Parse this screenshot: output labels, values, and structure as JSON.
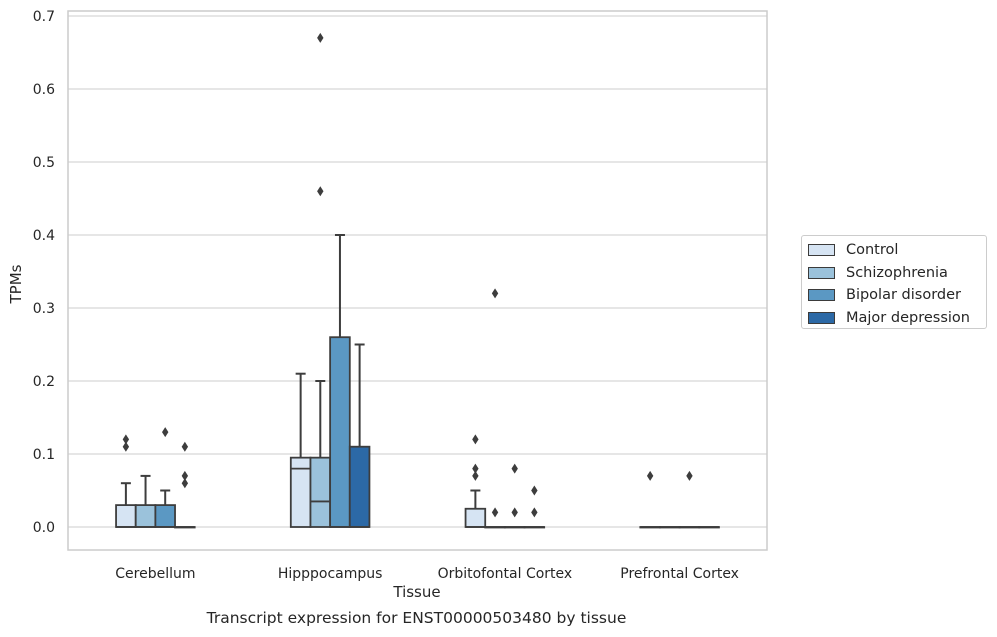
{
  "chart_data": {
    "type": "box",
    "caption": "Transcript expression for ENST00000503480 by tissue",
    "xlabel": "Tissue",
    "ylabel": "TPMs",
    "ylim": [
      -0.032,
      0.705
    ],
    "yticks": [
      "0.0",
      "0.1",
      "0.2",
      "0.3",
      "0.4",
      "0.5",
      "0.6",
      "0.7"
    ],
    "ytick_values": [
      0,
      0.1,
      0.2,
      0.3,
      0.4,
      0.5,
      0.6,
      0.7
    ],
    "categories": [
      "Cerebellum",
      "Hipppocampus",
      "Orbitofontal Cortex",
      "Prefrontal Cortex"
    ],
    "grid": true,
    "legend_position": "right",
    "series": [
      {
        "name": "Control",
        "color": "#d6e4f3",
        "boxes": [
          {
            "q1": 0,
            "median": 0,
            "q3": 0.03,
            "whislo": 0,
            "whishi": 0.06,
            "fliers": [
              0.11,
              0.12
            ]
          },
          {
            "q1": 0,
            "median": 0.08,
            "q3": 0.095,
            "whislo": 0,
            "whishi": 0.21,
            "fliers": []
          },
          {
            "q1": 0,
            "median": 0,
            "q3": 0.025,
            "whislo": 0,
            "whishi": 0.05,
            "fliers": [
              0.07,
              0.08,
              0.12
            ]
          },
          {
            "q1": 0,
            "median": 0,
            "q3": 0,
            "whislo": 0,
            "whishi": 0,
            "fliers": [
              0.07
            ]
          }
        ]
      },
      {
        "name": "Schizophrenia",
        "color": "#9bc2db",
        "boxes": [
          {
            "q1": 0,
            "median": 0,
            "q3": 0.03,
            "whislo": 0,
            "whishi": 0.07,
            "fliers": []
          },
          {
            "q1": 0,
            "median": 0.035,
            "q3": 0.095,
            "whislo": 0,
            "whishi": 0.2,
            "fliers": [
              0.46,
              0.67
            ]
          },
          {
            "q1": 0,
            "median": 0,
            "q3": 0,
            "whislo": 0,
            "whishi": 0,
            "fliers": [
              0.02,
              0.32
            ]
          },
          {
            "q1": 0,
            "median": 0,
            "q3": 0,
            "whislo": 0,
            "whishi": 0,
            "fliers": []
          }
        ]
      },
      {
        "name": "Bipolar disorder",
        "color": "#5b98c3",
        "boxes": [
          {
            "q1": 0,
            "median": 0,
            "q3": 0.03,
            "whislo": 0,
            "whishi": 0.05,
            "fliers": [
              0.13
            ]
          },
          {
            "q1": 0,
            "median": 0,
            "q3": 0.26,
            "whislo": 0,
            "whishi": 0.4,
            "fliers": []
          },
          {
            "q1": 0,
            "median": 0,
            "q3": 0,
            "whislo": 0,
            "whishi": 0,
            "fliers": [
              0.02,
              0.08
            ]
          },
          {
            "q1": 0,
            "median": 0,
            "q3": 0,
            "whislo": 0,
            "whishi": 0,
            "fliers": [
              0.07
            ]
          }
        ]
      },
      {
        "name": "Major depression",
        "color": "#2c69a6",
        "boxes": [
          {
            "q1": 0,
            "median": 0,
            "q3": 0,
            "whislo": 0,
            "whishi": 0,
            "fliers": [
              0.06,
              0.07,
              0.11
            ]
          },
          {
            "q1": 0,
            "median": 0,
            "q3": 0.11,
            "whislo": 0,
            "whishi": 0.25,
            "fliers": []
          },
          {
            "q1": 0,
            "median": 0,
            "q3": 0,
            "whislo": 0,
            "whishi": 0,
            "fliers": [
              0.02,
              0.05
            ]
          },
          {
            "q1": 0,
            "median": 0,
            "q3": 0,
            "whislo": 0,
            "whishi": 0,
            "fliers": []
          }
        ]
      }
    ]
  }
}
